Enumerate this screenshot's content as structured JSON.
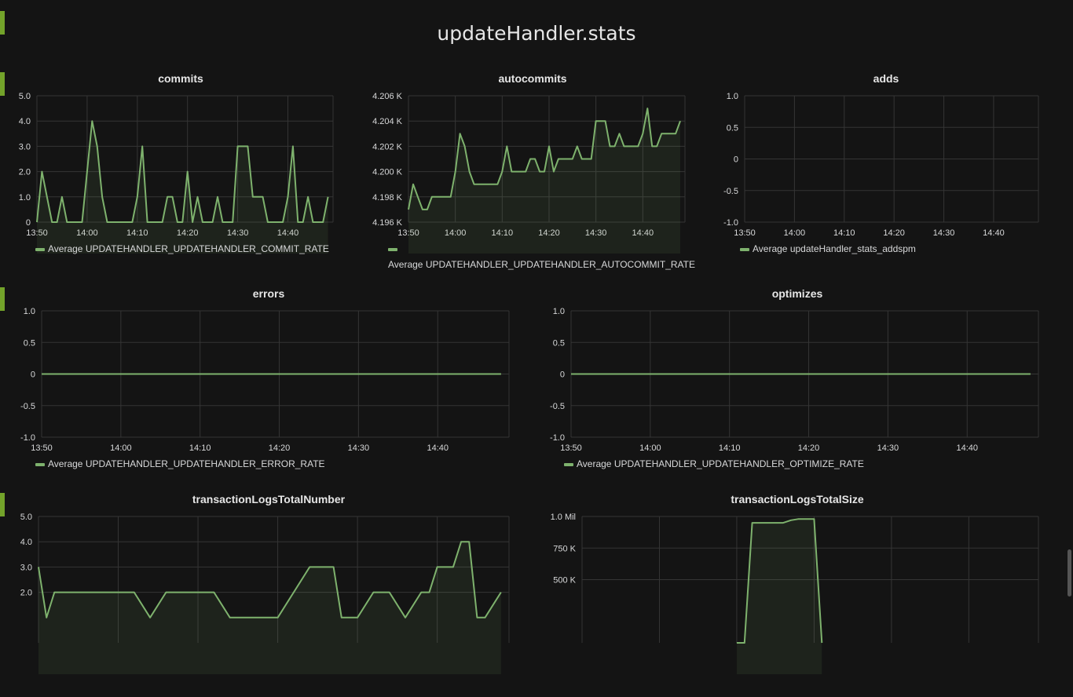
{
  "dashboard": {
    "title": "updateHandler.stats"
  },
  "colors": {
    "series": "#7eb26d",
    "grid": "#353535",
    "handle": "#73a32a",
    "background": "#141414"
  },
  "panels": [
    {
      "id": "commits",
      "title": "commits",
      "legend": "Average UPDATEHANDLER_UPDATEHANDLER_COMMIT_RATE",
      "chart_data": {
        "type": "line",
        "x_ticks": [
          "13:50",
          "14:00",
          "14:10",
          "14:20",
          "14:30",
          "14:40"
        ],
        "y_ticks": [
          "0",
          "1.0",
          "2.0",
          "3.0",
          "4.0",
          "5.0"
        ],
        "ylim": [
          0,
          5
        ],
        "xlim": [
          "13:50",
          "14:49"
        ],
        "series": [
          {
            "name": "Average UPDATEHANDLER_UPDATEHANDLER_COMMIT_RATE",
            "x": [
              "13:50",
              "13:51",
              "13:52",
              "13:53",
              "13:54",
              "13:55",
              "13:56",
              "13:57",
              "13:58",
              "13:59",
              "14:00",
              "14:01",
              "14:02",
              "14:03",
              "14:04",
              "14:05",
              "14:06",
              "14:07",
              "14:08",
              "14:09",
              "14:10",
              "14:11",
              "14:12",
              "14:13",
              "14:14",
              "14:15",
              "14:16",
              "14:17",
              "14:18",
              "14:19",
              "14:20",
              "14:21",
              "14:22",
              "14:23",
              "14:24",
              "14:25",
              "14:26",
              "14:27",
              "14:28",
              "14:29",
              "14:30",
              "14:31",
              "14:32",
              "14:33",
              "14:34",
              "14:35",
              "14:36",
              "14:37",
              "14:38",
              "14:39",
              "14:40",
              "14:41",
              "14:42",
              "14:43",
              "14:44",
              "14:45",
              "14:46",
              "14:47",
              "14:48"
            ],
            "values": [
              0,
              2,
              1,
              0,
              0,
              1,
              0,
              0,
              0,
              0,
              2,
              4,
              3,
              1,
              0,
              0,
              0,
              0,
              0,
              0,
              1,
              3,
              0,
              0,
              0,
              0,
              1,
              1,
              0,
              0,
              2,
              0,
              1,
              0,
              0,
              0,
              1,
              0,
              0,
              0,
              3,
              3,
              3,
              1,
              1,
              1,
              0,
              0,
              0,
              0,
              1,
              3,
              0,
              0,
              1,
              0,
              0,
              0,
              1
            ]
          }
        ]
      }
    },
    {
      "id": "autocommits",
      "title": "autocommits",
      "legend": "Average UPDATEHANDLER_UPDATEHANDLER_AUTOCOMMIT_RATE",
      "chart_data": {
        "type": "area",
        "x_ticks": [
          "13:50",
          "14:00",
          "14:10",
          "14:20",
          "14:30",
          "14:40"
        ],
        "y_ticks": [
          "4.196 K",
          "4.198 K",
          "4.200 K",
          "4.202 K",
          "4.204 K",
          "4.206 K"
        ],
        "ylim": [
          4196,
          4206
        ],
        "xlim": [
          "13:50",
          "14:49"
        ],
        "series": [
          {
            "name": "Average UPDATEHANDLER_UPDATEHANDLER_AUTOCOMMIT_RATE",
            "x": [
              "13:50",
              "13:51",
              "13:52",
              "13:53",
              "13:54",
              "13:55",
              "13:56",
              "13:57",
              "13:58",
              "13:59",
              "14:00",
              "14:01",
              "14:02",
              "14:03",
              "14:04",
              "14:05",
              "14:06",
              "14:07",
              "14:08",
              "14:09",
              "14:10",
              "14:11",
              "14:12",
              "14:13",
              "14:14",
              "14:15",
              "14:16",
              "14:17",
              "14:18",
              "14:19",
              "14:20",
              "14:21",
              "14:22",
              "14:23",
              "14:24",
              "14:25",
              "14:26",
              "14:27",
              "14:28",
              "14:29",
              "14:30",
              "14:31",
              "14:32",
              "14:33",
              "14:34",
              "14:35",
              "14:36",
              "14:37",
              "14:38",
              "14:39",
              "14:40",
              "14:41",
              "14:42",
              "14:43",
              "14:44",
              "14:45",
              "14:46",
              "14:47",
              "14:48"
            ],
            "values": [
              4197,
              4199,
              4198,
              4197,
              4197,
              4198,
              4198,
              4198,
              4198,
              4198,
              4200,
              4203,
              4202,
              4200,
              4199,
              4199,
              4199,
              4199,
              4199,
              4199,
              4200,
              4202,
              4200,
              4200,
              4200,
              4200,
              4201,
              4201,
              4200,
              4200,
              4202,
              4200,
              4201,
              4201,
              4201,
              4201,
              4202,
              4201,
              4201,
              4201,
              4204,
              4204,
              4204,
              4202,
              4202,
              4203,
              4202,
              4202,
              4202,
              4202,
              4203,
              4205,
              4202,
              4202,
              4203,
              4203,
              4203,
              4203,
              4204
            ]
          }
        ]
      }
    },
    {
      "id": "adds",
      "title": "adds",
      "legend": "Average updateHandler_stats_addspm",
      "chart_data": {
        "type": "line",
        "x_ticks": [
          "13:50",
          "14:00",
          "14:10",
          "14:20",
          "14:30",
          "14:40"
        ],
        "y_ticks": [
          "-1.0",
          "-0.5",
          "0",
          "0.5",
          "1.0"
        ],
        "ylim": [
          -1,
          1
        ],
        "xlim": [
          "13:50",
          "14:49"
        ],
        "series": [
          {
            "name": "Average updateHandler_stats_addspm",
            "x": [],
            "values": []
          }
        ]
      }
    },
    {
      "id": "errors",
      "title": "errors",
      "legend": "Average UPDATEHANDLER_UPDATEHANDLER_ERROR_RATE",
      "chart_data": {
        "type": "line",
        "x_ticks": [
          "13:50",
          "14:00",
          "14:10",
          "14:20",
          "14:30",
          "14:40"
        ],
        "y_ticks": [
          "-1.0",
          "-0.5",
          "0",
          "0.5",
          "1.0"
        ],
        "ylim": [
          -1,
          1
        ],
        "xlim": [
          "13:50",
          "14:49"
        ],
        "series": [
          {
            "name": "Average UPDATEHANDLER_UPDATEHANDLER_ERROR_RATE",
            "x": [
              "13:50",
              "14:48"
            ],
            "values": [
              0,
              0
            ]
          }
        ]
      }
    },
    {
      "id": "optimizes",
      "title": "optimizes",
      "legend": "Average UPDATEHANDLER_UPDATEHANDLER_OPTIMIZE_RATE",
      "chart_data": {
        "type": "line",
        "x_ticks": [
          "13:50",
          "14:00",
          "14:10",
          "14:20",
          "14:30",
          "14:40"
        ],
        "y_ticks": [
          "-1.0",
          "-0.5",
          "0",
          "0.5",
          "1.0"
        ],
        "ylim": [
          -1,
          1
        ],
        "xlim": [
          "13:50",
          "14:49"
        ],
        "series": [
          {
            "name": "Average UPDATEHANDLER_UPDATEHANDLER_OPTIMIZE_RATE",
            "x": [
              "13:50",
              "14:48"
            ],
            "values": [
              0,
              0
            ]
          }
        ]
      }
    },
    {
      "id": "transactionLogsTotalNumber",
      "title": "transactionLogsTotalNumber",
      "legend": "",
      "chart_data": {
        "type": "area",
        "x_ticks": [],
        "y_ticks": [
          "2.0",
          "3.0",
          "4.0",
          "5.0"
        ],
        "ylim": [
          0,
          5
        ],
        "xlim": [
          "13:50",
          "14:49"
        ],
        "series": [
          {
            "x": [
              "13:50",
              "13:51",
              "13:52",
              "13:54",
              "13:56",
              "13:58",
              "14:00",
              "14:02",
              "14:04",
              "14:06",
              "14:08",
              "14:10",
              "14:12",
              "14:14",
              "14:16",
              "14:18",
              "14:20",
              "14:22",
              "14:24",
              "14:26",
              "14:27",
              "14:28",
              "14:29",
              "14:30",
              "14:32",
              "14:34",
              "14:36",
              "14:38",
              "14:39",
              "14:40",
              "14:41",
              "14:42",
              "14:43",
              "14:44",
              "14:45",
              "14:46",
              "14:48"
            ],
            "values": [
              3,
              1,
              2,
              2,
              2,
              2,
              2,
              2,
              1,
              2,
              2,
              2,
              2,
              1,
              1,
              1,
              1,
              2,
              3,
              3,
              3,
              1,
              1,
              1,
              2,
              2,
              1,
              2,
              2,
              3,
              3,
              3,
              4,
              4,
              1,
              1,
              2
            ]
          }
        ]
      }
    },
    {
      "id": "transactionLogsTotalSize",
      "title": "transactionLogsTotalSize",
      "legend": "",
      "chart_data": {
        "type": "area",
        "x_ticks": [],
        "y_ticks": [
          "500 K",
          "750 K",
          "1.0 Mil"
        ],
        "ylim": [
          0,
          1000000
        ],
        "xlim": [
          "13:50",
          "14:49"
        ],
        "series": [
          {
            "x": [
              "14:10",
              "14:11",
              "14:12",
              "14:16",
              "14:17",
              "14:18",
              "14:20",
              "14:21"
            ],
            "values": [
              0,
              0,
              950000,
              950000,
              970000,
              980000,
              980000,
              0
            ]
          }
        ]
      }
    }
  ]
}
